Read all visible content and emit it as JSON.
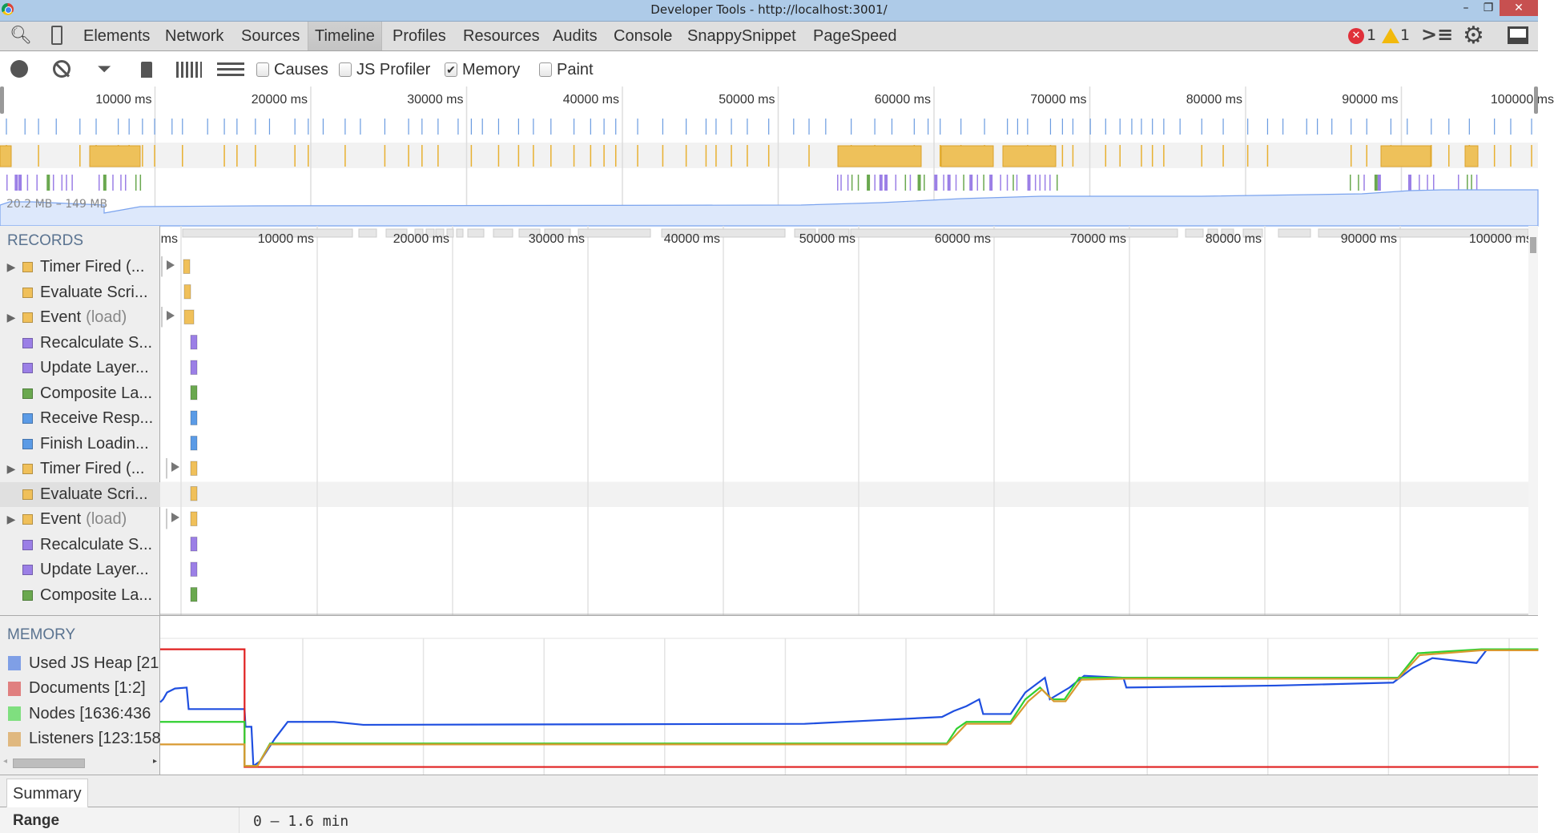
{
  "window": {
    "title": "Developer Tools - http://localhost:3001/",
    "minimize": "–",
    "restore": "❐",
    "close": "✕"
  },
  "tabs": [
    {
      "label": "Elements"
    },
    {
      "label": "Network"
    },
    {
      "label": "Sources"
    },
    {
      "label": "Timeline",
      "active": true
    },
    {
      "label": "Profiles"
    },
    {
      "label": "Resources"
    },
    {
      "label": "Audits"
    },
    {
      "label": "Console"
    },
    {
      "label": "SnappySnippet"
    },
    {
      "label": "PageSpeed"
    }
  ],
  "status": {
    "errors": "1",
    "warnings": "1"
  },
  "toolbar": {
    "checkboxes": [
      {
        "label": "Causes",
        "checked": false
      },
      {
        "label": "JS Profiler",
        "checked": false
      },
      {
        "label": "Memory",
        "checked": true
      },
      {
        "label": "Paint",
        "checked": false
      }
    ]
  },
  "overview": {
    "ticks": [
      "10000 ms",
      "20000 ms",
      "30000 ms",
      "40000 ms",
      "50000 ms",
      "60000 ms",
      "70000 ms",
      "80000 ms",
      "90000 ms",
      "100000 ms"
    ],
    "memory_range": "20.2 MB – 149 MB"
  },
  "records": {
    "header": "RECORDS",
    "ms_label": "ms",
    "ticks": [
      "10000 ms",
      "20000 ms",
      "30000 ms",
      "40000 ms",
      "50000 ms",
      "60000 ms",
      "70000 ms",
      "80000 ms",
      "90000 ms",
      "100000 ms"
    ],
    "rows": [
      {
        "label": "Timer Fired (...",
        "sub": "",
        "color": "#f0c05a",
        "expandable": true
      },
      {
        "label": "Evaluate Scri...",
        "sub": "",
        "color": "#f0c05a",
        "expandable": false
      },
      {
        "label": "Event",
        "sub": "(load)",
        "color": "#f0c05a",
        "expandable": true
      },
      {
        "label": "Recalculate S...",
        "sub": "",
        "color": "#9b7fe6",
        "expandable": false
      },
      {
        "label": "Update Layer...",
        "sub": "",
        "color": "#9b7fe6",
        "expandable": false
      },
      {
        "label": "Composite La...",
        "sub": "",
        "color": "#6aa84f",
        "expandable": false
      },
      {
        "label": "Receive Resp...",
        "sub": "",
        "color": "#5b9be6",
        "expandable": false
      },
      {
        "label": "Finish Loadin...",
        "sub": "",
        "color": "#5b9be6",
        "expandable": false
      },
      {
        "label": "Timer Fired (...",
        "sub": "",
        "color": "#f0c05a",
        "expandable": true
      },
      {
        "label": "Evaluate Scri...",
        "sub": "",
        "color": "#f0c05a",
        "expandable": false,
        "selected": true
      },
      {
        "label": "Event",
        "sub": "(load)",
        "color": "#f0c05a",
        "expandable": true
      },
      {
        "label": "Recalculate S...",
        "sub": "",
        "color": "#9b7fe6",
        "expandable": false
      },
      {
        "label": "Update Layer...",
        "sub": "",
        "color": "#9b7fe6",
        "expandable": false
      },
      {
        "label": "Composite La...",
        "sub": "",
        "color": "#6aa84f",
        "expandable": false
      }
    ]
  },
  "memory": {
    "header": "MEMORY",
    "legend": [
      {
        "label": "Used JS Heap [21",
        "color": "#7f9fe6",
        "line": "#1f4fe0"
      },
      {
        "label": "Documents [1:2]",
        "color": "#e07f7f",
        "line": "#e02020"
      },
      {
        "label": "Nodes [1636:436",
        "color": "#7fdf7f",
        "line": "#30d030"
      },
      {
        "label": "Listeners [123:158",
        "color": "#e0b87f",
        "line": "#d89a30"
      }
    ]
  },
  "summary": {
    "tab": "Summary",
    "range_label": "Range",
    "range_value": "0 – 1.6 min"
  }
}
